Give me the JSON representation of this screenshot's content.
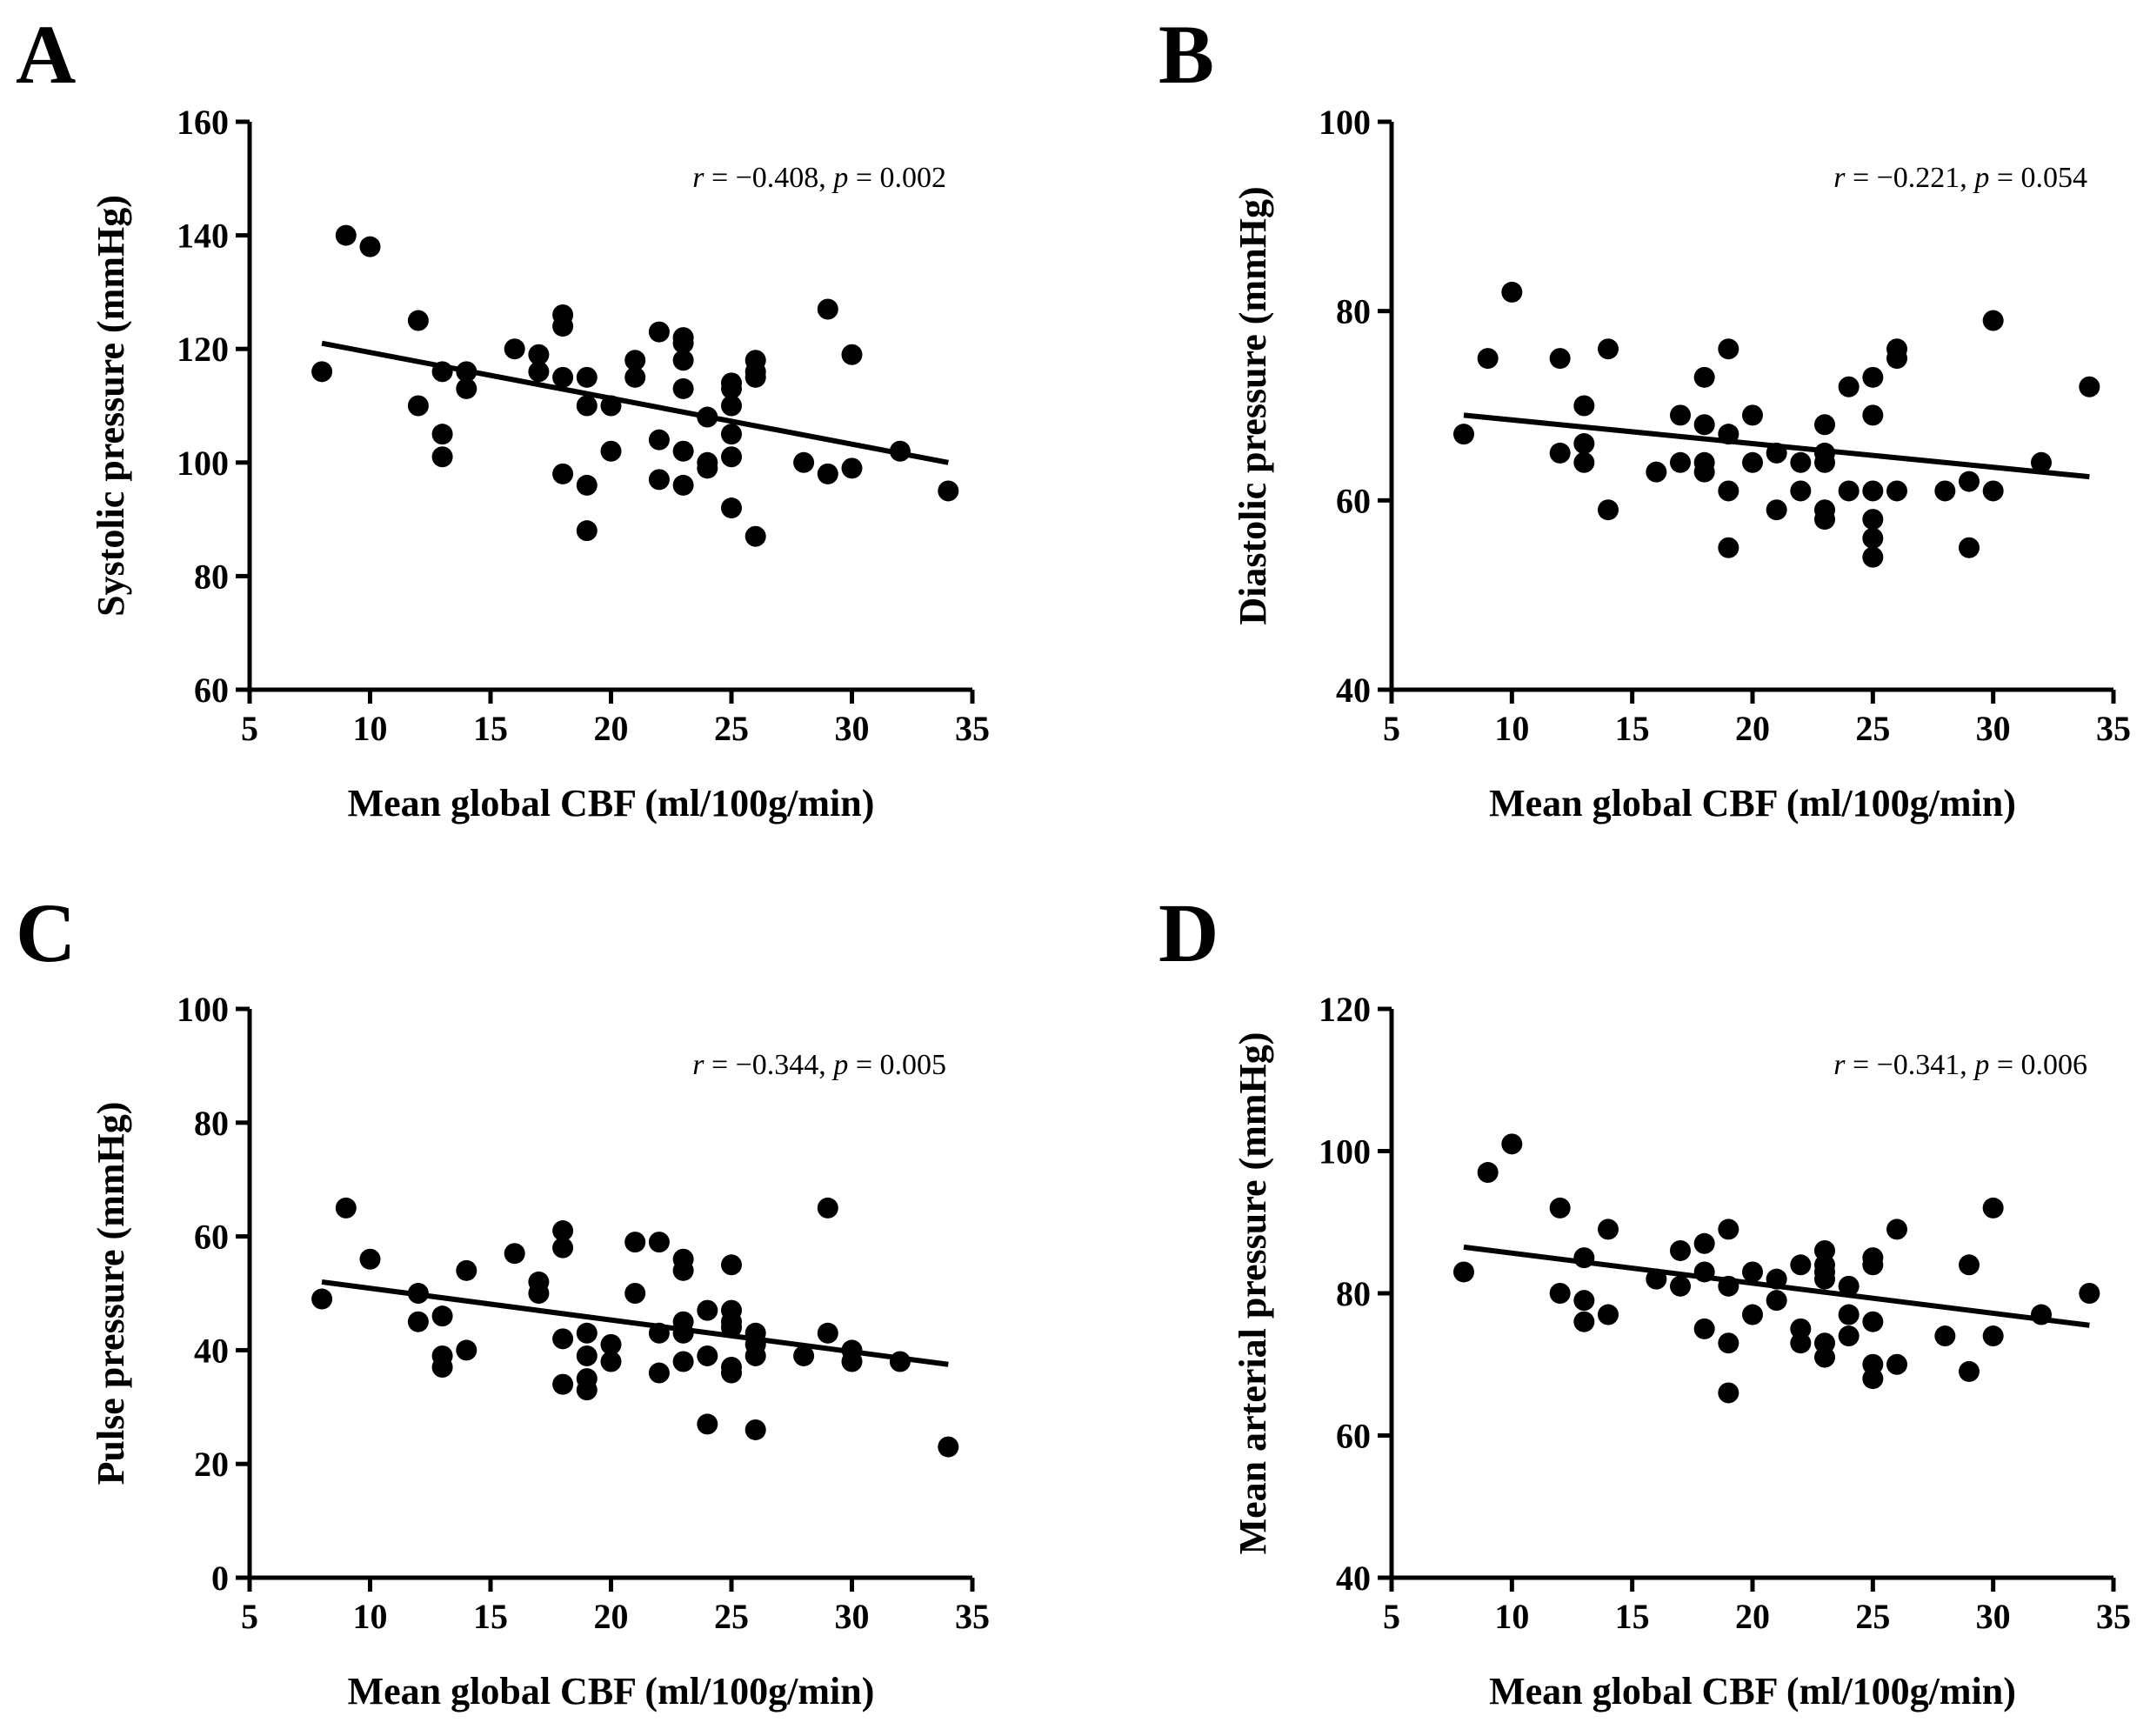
{
  "chart_data": [
    {
      "type": "scatter",
      "panel": "A",
      "xlabel": "Mean global CBF (ml/100g/min)",
      "ylabel": "Systolic pressure (mmHg)",
      "xlim": [
        5,
        35
      ],
      "ylim": [
        60,
        160
      ],
      "xticks": [
        5,
        10,
        15,
        20,
        25,
        30,
        35
      ],
      "yticks": [
        60,
        80,
        100,
        120,
        140,
        160
      ],
      "stat": {
        "r_label": "r",
        "r_value": " = −0.408, ",
        "p_label": "p",
        "p_value": " = 0.002"
      },
      "fit": {
        "x": [
          8,
          34
        ],
        "y": [
          121,
          100
        ]
      },
      "points": [
        [
          8,
          116
        ],
        [
          9,
          140
        ],
        [
          10,
          138
        ],
        [
          12,
          125
        ],
        [
          12,
          110
        ],
        [
          13,
          116
        ],
        [
          13,
          105
        ],
        [
          13,
          101
        ],
        [
          14,
          116
        ],
        [
          14,
          113
        ],
        [
          16,
          120
        ],
        [
          17,
          119
        ],
        [
          17,
          116
        ],
        [
          18,
          126
        ],
        [
          18,
          124
        ],
        [
          18,
          115
        ],
        [
          18,
          98
        ],
        [
          19,
          115
        ],
        [
          19,
          110
        ],
        [
          19,
          96
        ],
        [
          19,
          88
        ],
        [
          20,
          110
        ],
        [
          20,
          102
        ],
        [
          21,
          118
        ],
        [
          21,
          115
        ],
        [
          22,
          123
        ],
        [
          22,
          104
        ],
        [
          22,
          97
        ],
        [
          23,
          122
        ],
        [
          23,
          121
        ],
        [
          23,
          118
        ],
        [
          23,
          113
        ],
        [
          23,
          102
        ],
        [
          23,
          96
        ],
        [
          24,
          108
        ],
        [
          24,
          100
        ],
        [
          24,
          99
        ],
        [
          25,
          114
        ],
        [
          25,
          113
        ],
        [
          25,
          110
        ],
        [
          25,
          105
        ],
        [
          25,
          101
        ],
        [
          25,
          92
        ],
        [
          26,
          118
        ],
        [
          26,
          116
        ],
        [
          26,
          115
        ],
        [
          26,
          87
        ],
        [
          28,
          100
        ],
        [
          29,
          127
        ],
        [
          29,
          98
        ],
        [
          30,
          119
        ],
        [
          30,
          99
        ],
        [
          32,
          102
        ],
        [
          34,
          95
        ]
      ]
    },
    {
      "type": "scatter",
      "panel": "B",
      "xlabel": "Mean global CBF (ml/100g/min)",
      "ylabel": "Diastolic pressure (mmHg)",
      "xlim": [
        5,
        35
      ],
      "ylim": [
        40,
        100
      ],
      "xticks": [
        5,
        10,
        15,
        20,
        25,
        30,
        35
      ],
      "yticks": [
        40,
        60,
        80,
        100
      ],
      "stat": {
        "r_label": "r",
        "r_value": " = −0.221, ",
        "p_label": "p",
        "p_value": " = 0.054"
      },
      "fit": {
        "x": [
          8,
          34
        ],
        "y": [
          69,
          62.5
        ]
      },
      "points": [
        [
          8,
          67
        ],
        [
          9,
          75
        ],
        [
          10,
          82
        ],
        [
          12,
          75
        ],
        [
          12,
          65
        ],
        [
          13,
          70
        ],
        [
          13,
          66
        ],
        [
          13,
          64
        ],
        [
          14,
          76
        ],
        [
          14,
          59
        ],
        [
          16,
          63
        ],
        [
          17,
          69
        ],
        [
          17,
          64
        ],
        [
          18,
          73
        ],
        [
          18,
          68
        ],
        [
          18,
          64
        ],
        [
          18,
          63
        ],
        [
          19,
          76
        ],
        [
          19,
          67
        ],
        [
          19,
          61
        ],
        [
          19,
          55
        ],
        [
          20,
          69
        ],
        [
          20,
          64
        ],
        [
          21,
          65
        ],
        [
          21,
          59
        ],
        [
          22,
          64
        ],
        [
          22,
          61
        ],
        [
          23,
          68
        ],
        [
          23,
          65
        ],
        [
          23,
          64
        ],
        [
          23,
          59
        ],
        [
          23,
          58
        ],
        [
          24,
          72
        ],
        [
          24,
          61
        ],
        [
          25,
          73
        ],
        [
          25,
          69
        ],
        [
          25,
          61
        ],
        [
          25,
          58
        ],
        [
          25,
          56
        ],
        [
          25,
          54
        ],
        [
          26,
          76
        ],
        [
          26,
          75
        ],
        [
          26,
          61
        ],
        [
          28,
          61
        ],
        [
          29,
          62
        ],
        [
          29,
          55
        ],
        [
          30,
          79
        ],
        [
          30,
          61
        ],
        [
          32,
          64
        ],
        [
          34,
          72
        ]
      ]
    },
    {
      "type": "scatter",
      "panel": "C",
      "xlabel": "Mean global CBF (ml/100g/min)",
      "ylabel": "Pulse pressure (mmHg)",
      "xlim": [
        5,
        35
      ],
      "ylim": [
        0,
        100
      ],
      "xticks": [
        5,
        10,
        15,
        20,
        25,
        30,
        35
      ],
      "yticks": [
        0,
        20,
        40,
        60,
        80,
        100
      ],
      "stat": {
        "r_label": "r",
        "r_value": " = −0.344, ",
        "p_label": "p",
        "p_value": " = 0.005"
      },
      "fit": {
        "x": [
          8,
          34
        ],
        "y": [
          52,
          37.5
        ]
      },
      "points": [
        [
          8,
          49
        ],
        [
          9,
          65
        ],
        [
          10,
          56
        ],
        [
          12,
          50
        ],
        [
          12,
          45
        ],
        [
          13,
          46
        ],
        [
          13,
          39
        ],
        [
          13,
          37
        ],
        [
          14,
          54
        ],
        [
          14,
          40
        ],
        [
          16,
          57
        ],
        [
          17,
          52
        ],
        [
          17,
          50
        ],
        [
          18,
          61
        ],
        [
          18,
          58
        ],
        [
          18,
          42
        ],
        [
          18,
          34
        ],
        [
          19,
          43
        ],
        [
          19,
          39
        ],
        [
          19,
          35
        ],
        [
          19,
          33
        ],
        [
          20,
          41
        ],
        [
          20,
          38
        ],
        [
          21,
          59
        ],
        [
          21,
          50
        ],
        [
          22,
          59
        ],
        [
          22,
          43
        ],
        [
          22,
          36
        ],
        [
          23,
          56
        ],
        [
          23,
          54
        ],
        [
          23,
          45
        ],
        [
          23,
          43
        ],
        [
          23,
          38
        ],
        [
          24,
          47
        ],
        [
          24,
          39
        ],
        [
          24,
          27
        ],
        [
          25,
          55
        ],
        [
          25,
          47
        ],
        [
          25,
          45
        ],
        [
          25,
          44
        ],
        [
          25,
          37
        ],
        [
          25,
          36
        ],
        [
          26,
          43
        ],
        [
          26,
          41
        ],
        [
          26,
          39
        ],
        [
          26,
          26
        ],
        [
          28,
          39
        ],
        [
          29,
          65
        ],
        [
          29,
          43
        ],
        [
          30,
          40
        ],
        [
          30,
          38
        ],
        [
          32,
          38
        ],
        [
          34,
          23
        ]
      ]
    },
    {
      "type": "scatter",
      "panel": "D",
      "xlabel": "Mean global CBF (ml/100g/min)",
      "ylabel": "Mean arterial pressure (mmHg)",
      "xlim": [
        5,
        35
      ],
      "ylim": [
        40,
        120
      ],
      "xticks": [
        5,
        10,
        15,
        20,
        25,
        30,
        35
      ],
      "yticks": [
        40,
        60,
        80,
        100,
        120
      ],
      "stat": {
        "r_label": "r",
        "r_value": " = −0.341, ",
        "p_label": "p",
        "p_value": " = 0.006"
      },
      "fit": {
        "x": [
          8,
          34
        ],
        "y": [
          86.5,
          75.5
        ]
      },
      "points": [
        [
          8,
          83
        ],
        [
          9,
          97
        ],
        [
          10,
          101
        ],
        [
          12,
          92
        ],
        [
          12,
          80
        ],
        [
          13,
          85
        ],
        [
          13,
          79
        ],
        [
          13,
          76
        ],
        [
          14,
          89
        ],
        [
          14,
          77
        ],
        [
          16,
          82
        ],
        [
          17,
          86
        ],
        [
          17,
          81
        ],
        [
          18,
          87
        ],
        [
          18,
          83
        ],
        [
          18,
          75
        ],
        [
          19,
          89
        ],
        [
          19,
          81
        ],
        [
          19,
          73
        ],
        [
          19,
          66
        ],
        [
          20,
          83
        ],
        [
          20,
          77
        ],
        [
          21,
          82
        ],
        [
          21,
          79
        ],
        [
          22,
          84
        ],
        [
          22,
          75
        ],
        [
          22,
          73
        ],
        [
          23,
          86
        ],
        [
          23,
          84
        ],
        [
          23,
          83
        ],
        [
          23,
          82
        ],
        [
          23,
          73
        ],
        [
          23,
          71
        ],
        [
          24,
          81
        ],
        [
          24,
          77
        ],
        [
          24,
          74
        ],
        [
          25,
          85
        ],
        [
          25,
          84
        ],
        [
          25,
          76
        ],
        [
          25,
          70
        ],
        [
          25,
          68
        ],
        [
          26,
          89
        ],
        [
          26,
          70
        ],
        [
          28,
          74
        ],
        [
          29,
          84
        ],
        [
          29,
          69
        ],
        [
          30,
          92
        ],
        [
          30,
          74
        ],
        [
          32,
          77
        ],
        [
          34,
          80
        ]
      ]
    }
  ]
}
